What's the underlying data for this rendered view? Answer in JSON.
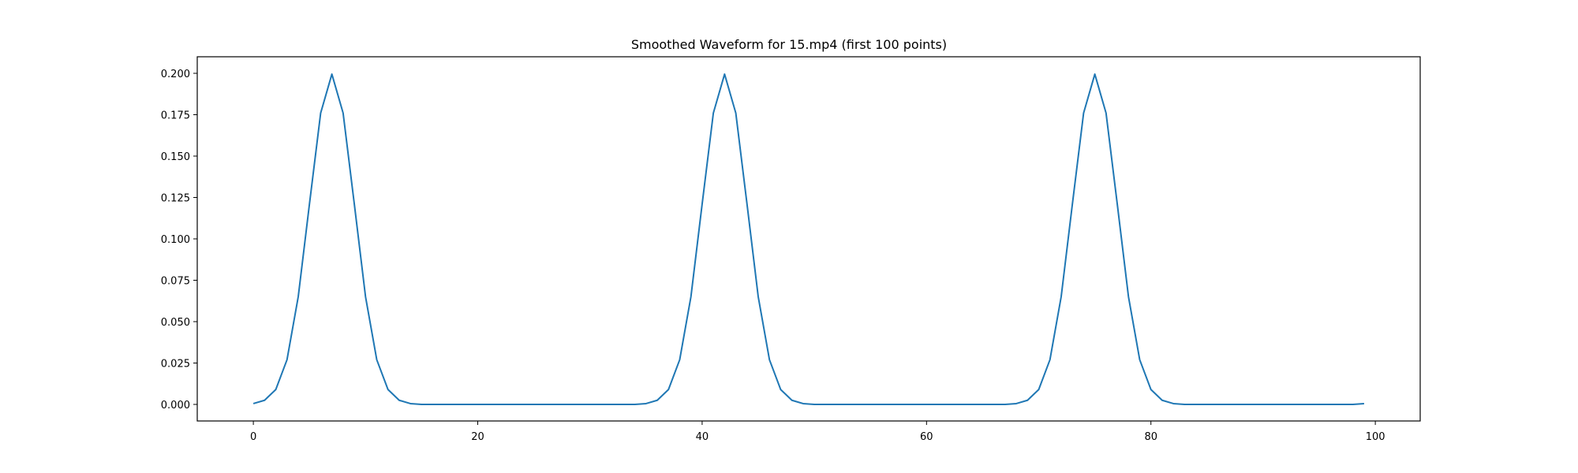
{
  "chart_data": {
    "type": "line",
    "title": "Smoothed Waveform for 15.mp4 (first 100 points)",
    "xlabel": "",
    "ylabel": "",
    "xlim": [
      -5,
      104
    ],
    "ylim": [
      -0.01,
      0.21
    ],
    "xticks": [
      0,
      20,
      40,
      60,
      80,
      100
    ],
    "yticks": [
      0.0,
      0.025,
      0.05,
      0.075,
      0.1,
      0.125,
      0.15,
      0.175,
      0.2
    ],
    "xtick_labels": [
      "0",
      "20",
      "40",
      "60",
      "80",
      "100"
    ],
    "ytick_labels": [
      "0.000",
      "0.025",
      "0.050",
      "0.075",
      "0.100",
      "0.125",
      "0.150",
      "0.175",
      "0.200"
    ],
    "grid": false,
    "legend": "none",
    "line_color": "#1f77b4",
    "series": [
      {
        "x": [
          0,
          1,
          2,
          3,
          4,
          5,
          6,
          7,
          8,
          9,
          10,
          11,
          12,
          13,
          14,
          15,
          16,
          17,
          18,
          19,
          20,
          21,
          22,
          23,
          24,
          25,
          26,
          27,
          28,
          29,
          30,
          31,
          32,
          33,
          34,
          35,
          36,
          37,
          38,
          39,
          40,
          41,
          42,
          43,
          44,
          45,
          46,
          47,
          48,
          49,
          50,
          51,
          52,
          53,
          54,
          55,
          56,
          57,
          58,
          59,
          60,
          61,
          62,
          63,
          64,
          65,
          66,
          67,
          68,
          69,
          70,
          71,
          72,
          73,
          74,
          75,
          76,
          77,
          78,
          79,
          80,
          81,
          82,
          83,
          84,
          85,
          86,
          87,
          88,
          89,
          90,
          91,
          92,
          93,
          94,
          95,
          96,
          97,
          98,
          99
        ],
        "values": [
          0.0005,
          0.0025,
          0.009,
          0.027,
          0.065,
          0.121,
          0.176,
          0.1995,
          0.176,
          0.121,
          0.065,
          0.027,
          0.009,
          0.0025,
          0.0005,
          0,
          0,
          0,
          0,
          0,
          0,
          0,
          0,
          0,
          0,
          0,
          0,
          0,
          0,
          0,
          0,
          0,
          0,
          0,
          0,
          0.0005,
          0.0025,
          0.009,
          0.027,
          0.065,
          0.121,
          0.176,
          0.1995,
          0.176,
          0.121,
          0.065,
          0.027,
          0.009,
          0.0025,
          0.0005,
          0,
          0,
          0,
          0,
          0,
          0,
          0,
          0,
          0,
          0,
          0,
          0,
          0,
          0,
          0,
          0,
          0,
          0,
          0.0005,
          0.0025,
          0.009,
          0.027,
          0.065,
          0.121,
          0.176,
          0.1995,
          0.176,
          0.121,
          0.065,
          0.027,
          0.009,
          0.0025,
          0.0005,
          0,
          0,
          0,
          0,
          0,
          0,
          0,
          0,
          0,
          0,
          0,
          0,
          0,
          0,
          0,
          0,
          0.0005
        ]
      }
    ]
  }
}
